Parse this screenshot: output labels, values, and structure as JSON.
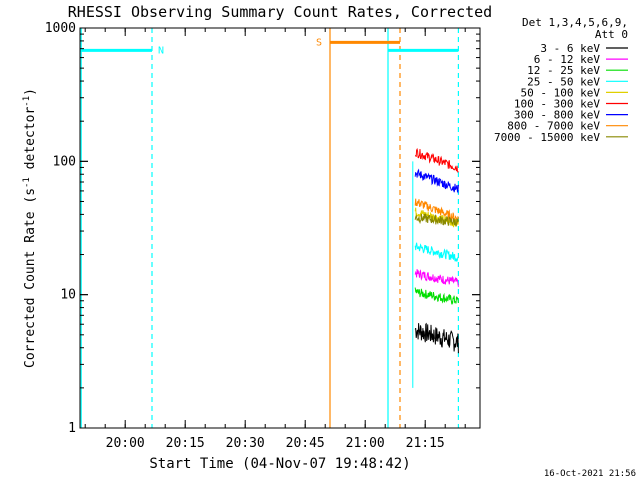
{
  "chart_data": {
    "type": "line",
    "title": "RHESSI Observing Summary Count Rates, Corrected",
    "xlabel": "Start Time (04-Nov-07 19:48:42)",
    "ylabel_main": "Corrected Count Rate (s",
    "ylabel_sup1": "-1",
    "ylabel_mid": " detector",
    "ylabel_sup2": "-1",
    "ylabel_end": ")",
    "y_scale": "log",
    "ylim": [
      1,
      1000
    ],
    "xlim_minutes": [
      0,
      100
    ],
    "x_ticks": [
      {
        "label": "20:00",
        "minutes": 11.3
      },
      {
        "label": "20:15",
        "minutes": 26.3
      },
      {
        "label": "20:30",
        "minutes": 41.3
      },
      {
        "label": "20:45",
        "minutes": 56.3
      },
      {
        "label": "21:00",
        "minutes": 71.3
      },
      {
        "label": "21:15",
        "minutes": 86.3
      }
    ],
    "y_ticks": [
      {
        "label": "1",
        "value": 1
      },
      {
        "label": "10",
        "value": 10
      },
      {
        "label": "100",
        "value": 100
      },
      {
        "label": "1000",
        "value": 1000
      }
    ],
    "legend_header": [
      "Det 1,3,4,5,6,9,",
      "Att 0"
    ],
    "legend_placement": "right",
    "series": [
      {
        "name": "3 - 6 keV",
        "color": "#000000",
        "start": 5.5,
        "end": 4.4
      },
      {
        "name": "6 - 12 keV",
        "color": "#ff00ff",
        "start": 14.5,
        "end": 12.3
      },
      {
        "name": "12 - 25 keV",
        "color": "#00dd00",
        "start": 10.5,
        "end": 9.0
      },
      {
        "name": "25 - 50 keV",
        "color": "#00ffff",
        "start": 23.0,
        "end": 19.0
      },
      {
        "name": "50 - 100 keV",
        "color": "#e0d000",
        "start": 42.0,
        "end": 34.0
      },
      {
        "name": "100 - 300 keV",
        "color": "#ff0000",
        "start": 118.0,
        "end": 89.0
      },
      {
        "name": "300 - 800 keV",
        "color": "#0000ff",
        "start": 82.0,
        "end": 62.0
      },
      {
        "name": "800 - 7000 keV",
        "color": "#ff8800",
        "start": 50.0,
        "end": 37.0
      },
      {
        "name": "7000 - 15000 keV",
        "color": "#888800",
        "start": 38.0,
        "end": 35.0
      }
    ],
    "data_start_minutes": 83.8,
    "data_end_minutes": 94.6,
    "flags": [
      {
        "label": "N",
        "color": "#00ffff",
        "start": 0,
        "end": 18.0,
        "level": 680
      },
      {
        "label": "S",
        "color": "#ff8800",
        "start": 62.5,
        "end": 80.0,
        "level": 780
      }
    ],
    "bar_levels": [
      {
        "color": "#00ffff",
        "start": 77.0,
        "end": 94.6,
        "level": 680
      }
    ],
    "event_lines": [
      {
        "minutes": 0.3,
        "color": "#00ffff",
        "style": "solid"
      },
      {
        "minutes": 18.0,
        "color": "#00ffff",
        "style": "dashed"
      },
      {
        "minutes": 62.5,
        "color": "#ff8800",
        "style": "solid"
      },
      {
        "minutes": 77.0,
        "color": "#00ffff",
        "style": "solid"
      },
      {
        "minutes": 80.0,
        "color": "#ff8800",
        "style": "dashed"
      },
      {
        "minutes": 94.6,
        "color": "#00ffff",
        "style": "dashed"
      }
    ]
  },
  "footer_timestamp": "16-Oct-2021 21:56"
}
